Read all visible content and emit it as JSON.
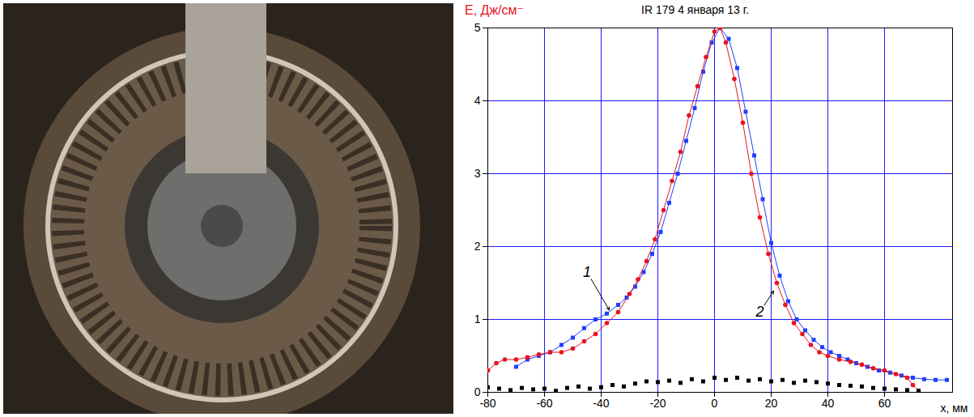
{
  "chart_data": {
    "type": "line",
    "title": "IR 179 4 января 13 г.",
    "y_label": "E, Дж/см⁻",
    "x_label": "x, мм",
    "xlim": [
      -80,
      84
    ],
    "ylim": [
      0,
      5
    ],
    "xticks": [
      -80,
      -60,
      -40,
      -20,
      0,
      20,
      40,
      60
    ],
    "yticks": [
      0,
      1,
      2,
      3,
      4,
      5
    ],
    "grid": true,
    "series": [
      {
        "name": "1",
        "color": "#1f3fff",
        "marker": "square",
        "line_style": "solid",
        "x": [
          -70,
          -66,
          -62,
          -58,
          -54,
          -50,
          -46,
          -42,
          -38,
          -34,
          -31,
          -28,
          -25,
          -22,
          -19,
          -16,
          -13,
          -10,
          -7,
          -4,
          -1,
          2,
          5,
          8,
          11,
          14,
          17,
          20,
          23,
          26,
          29,
          32,
          35,
          38,
          41,
          44,
          47,
          50,
          54,
          58,
          62,
          66,
          70,
          74,
          78,
          82
        ],
        "values": [
          0.35,
          0.45,
          0.5,
          0.55,
          0.65,
          0.75,
          0.88,
          1.0,
          1.08,
          1.2,
          1.3,
          1.45,
          1.65,
          1.9,
          2.2,
          2.6,
          3.0,
          3.45,
          3.9,
          4.4,
          4.8,
          5.0,
          4.85,
          4.45,
          3.85,
          3.25,
          2.65,
          2.05,
          1.6,
          1.25,
          1.0,
          0.85,
          0.72,
          0.62,
          0.55,
          0.5,
          0.45,
          0.4,
          0.35,
          0.3,
          0.27,
          0.23,
          0.2,
          0.18,
          0.17,
          0.17
        ]
      },
      {
        "name": "2",
        "color": "#e8141e",
        "marker": "circle",
        "line_style": "solid",
        "x": [
          -80,
          -77,
          -74,
          -70,
          -66,
          -62,
          -58,
          -54,
          -50,
          -46,
          -42,
          -38,
          -34,
          -30,
          -27,
          -24,
          -21,
          -18,
          -15,
          -12,
          -9,
          -6,
          -3,
          0,
          2,
          4,
          7,
          10,
          13,
          16,
          19,
          22,
          25,
          28,
          31,
          34,
          37,
          40,
          44,
          48,
          52,
          56,
          60,
          64,
          68,
          70,
          72
        ],
        "values": [
          0.3,
          0.4,
          0.45,
          0.45,
          0.48,
          0.52,
          0.55,
          0.55,
          0.6,
          0.7,
          0.8,
          0.95,
          1.1,
          1.35,
          1.55,
          1.8,
          2.1,
          2.5,
          2.9,
          3.3,
          3.8,
          4.2,
          4.6,
          4.95,
          5.0,
          4.8,
          4.3,
          3.7,
          3.0,
          2.4,
          1.9,
          1.5,
          1.2,
          0.95,
          0.8,
          0.65,
          0.55,
          0.5,
          0.45,
          0.42,
          0.38,
          0.33,
          0.3,
          0.25,
          0.2,
          0.1,
          0.02
        ]
      },
      {
        "color": "#000000",
        "marker": "square",
        "line_style": "none",
        "x": [
          -80,
          -76,
          -72,
          -68,
          -64,
          -60,
          -56,
          -52,
          -48,
          -44,
          -40,
          -36,
          -32,
          -28,
          -24,
          -20,
          -16,
          -12,
          -8,
          -4,
          0,
          4,
          8,
          12,
          16,
          20,
          24,
          28,
          32,
          36,
          40,
          44,
          48,
          52,
          56,
          60,
          64,
          68,
          72
        ],
        "values": [
          0.07,
          0.05,
          0.03,
          0.06,
          0.04,
          0.05,
          0.02,
          0.06,
          0.08,
          0.05,
          0.07,
          0.1,
          0.08,
          0.12,
          0.15,
          0.14,
          0.16,
          0.13,
          0.18,
          0.15,
          0.2,
          0.17,
          0.2,
          0.16,
          0.18,
          0.15,
          0.17,
          0.13,
          0.16,
          0.14,
          0.12,
          0.1,
          0.09,
          0.08,
          0.06,
          0.05,
          0.04,
          0.03,
          0.02
        ]
      }
    ],
    "annotations": [
      {
        "text": "1",
        "x": -45,
        "y": 1.65,
        "arrow_to": [
          -37,
          1.12
        ]
      },
      {
        "text": "2",
        "x": 16,
        "y": 1.1,
        "arrow_to": [
          21,
          1.4
        ]
      }
    ]
  }
}
